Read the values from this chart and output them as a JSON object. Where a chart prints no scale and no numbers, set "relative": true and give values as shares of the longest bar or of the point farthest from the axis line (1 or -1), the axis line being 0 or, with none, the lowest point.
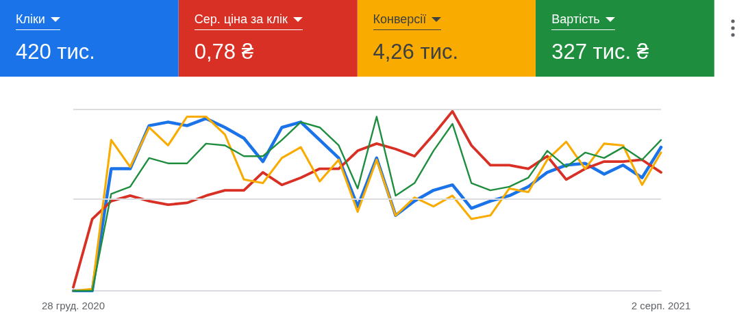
{
  "chart_data": {
    "type": "line",
    "relative": true,
    "ref_lines": [
      {
        "axis": "y",
        "value": 0.505,
        "color": "#dadce0"
      },
      {
        "axis": "y",
        "value": 1.01,
        "color": "#dadce0"
      }
    ],
    "marker": "none",
    "line_style": "solid",
    "categories": [
      "28 груд. 2020",
      null,
      null,
      null,
      null,
      null,
      null,
      null,
      null,
      null,
      null,
      null,
      null,
      null,
      null,
      null,
      null,
      null,
      null,
      null,
      null,
      null,
      null,
      null,
      null,
      null,
      null,
      null,
      null,
      null,
      null,
      "2 серп. 2021"
    ],
    "annotations": [
      "Кліки",
      "420 тис.",
      "Сер. ціна за клік",
      "0,78 ₴",
      "Конверсії",
      "4,26 тис.",
      "Вартість",
      "327 тис. ₴"
    ],
    "series": [
      {
        "color": "#1a73e8",
        "values": [
          0,
          0,
          0.68,
          0.68,
          0.92,
          0.94,
          0.92,
          0.96,
          0.91,
          0.85,
          0.72,
          0.91,
          0.94,
          0.84,
          0.74,
          0.47,
          0.74,
          0.42,
          0.5,
          0.56,
          0.59,
          0.46,
          0.5,
          0.53,
          0.58,
          0.66,
          0.7,
          0.71,
          0.65,
          0.7,
          0.63,
          0.8
        ]
      },
      {
        "color": "#d93025",
        "values": [
          0.02,
          0.4,
          0.5,
          0.53,
          0.5,
          0.48,
          0.49,
          0.53,
          0.56,
          0.56,
          0.66,
          0.59,
          0.63,
          0.68,
          0.68,
          0.78,
          0.82,
          0.79,
          0.75,
          0.87,
          1.0,
          0.81,
          0.7,
          0.7,
          0.68,
          0.75,
          0.62,
          0.68,
          0.72,
          0.72,
          0.73,
          0.66
        ]
      },
      {
        "color": "#f9ab00",
        "values": [
          0,
          0.01,
          0.84,
          0.69,
          0.91,
          0.81,
          0.97,
          0.97,
          0.87,
          0.62,
          0.6,
          0.74,
          0.8,
          0.61,
          0.73,
          0.44,
          0.73,
          0.42,
          0.52,
          0.47,
          0.53,
          0.4,
          0.42,
          0.57,
          0.55,
          0.73,
          0.83,
          0.68,
          0.82,
          0.81,
          0.59,
          0.77
        ]
      },
      {
        "color": "#1e8e3e",
        "values": [
          0,
          0,
          0.54,
          0.58,
          0.74,
          0.71,
          0.71,
          0.82,
          0.81,
          0.75,
          0.75,
          0.84,
          0.94,
          0.91,
          0.81,
          0.57,
          0.97,
          0.53,
          0.6,
          0.78,
          0.93,
          0.6,
          0.56,
          0.58,
          0.63,
          0.78,
          0.69,
          0.77,
          0.74,
          0.8,
          0.73,
          0.84
        ]
      }
    ]
  }
}
